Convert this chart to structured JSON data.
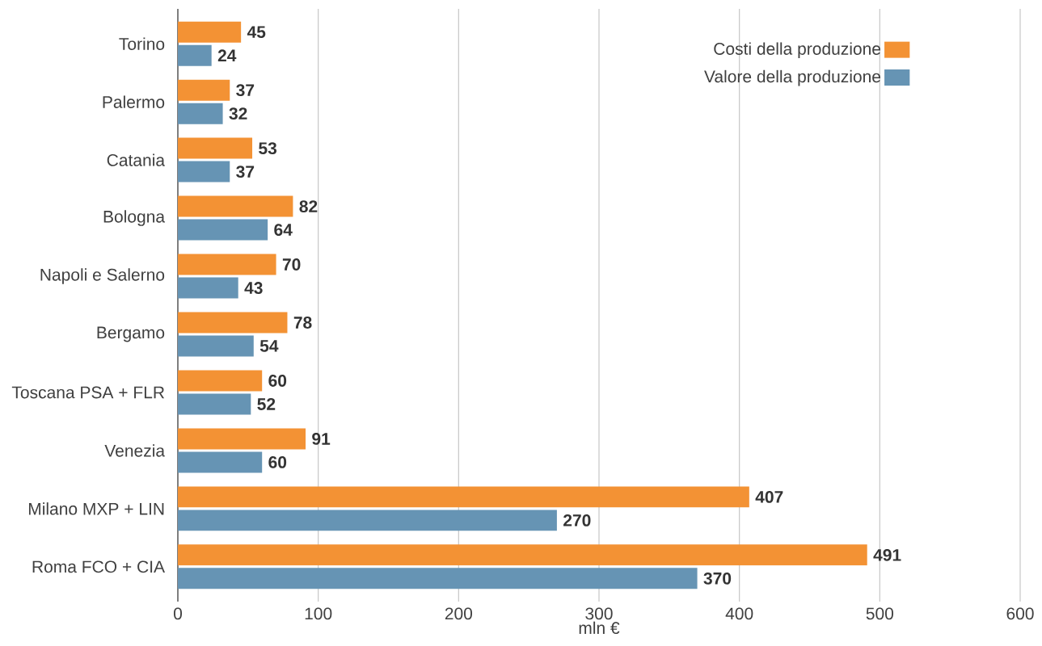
{
  "chart_data": {
    "type": "bar",
    "orientation": "horizontal",
    "xlabel": "mln €",
    "categories": [
      "Torino",
      "Palermo",
      "Catania",
      "Bologna",
      "Napoli e Salerno",
      "Bergamo",
      "Toscana PSA + FLR",
      "Venezia",
      "Milano MXP + LIN",
      "Roma FCO + CIA"
    ],
    "series": [
      {
        "name": "Costi della produzione",
        "color": "#f39234",
        "values": [
          45,
          37,
          53,
          82,
          70,
          78,
          60,
          91,
          407,
          491
        ]
      },
      {
        "name": "Valore della produzione",
        "color": "#6694b4",
        "values": [
          24,
          32,
          37,
          64,
          43,
          54,
          52,
          60,
          270,
          370
        ]
      }
    ],
    "xlim": [
      0,
      600
    ],
    "xticks": [
      0,
      100,
      200,
      300,
      400,
      500,
      600
    ],
    "grid": "x",
    "legend": "top right",
    "data_labels": true
  }
}
